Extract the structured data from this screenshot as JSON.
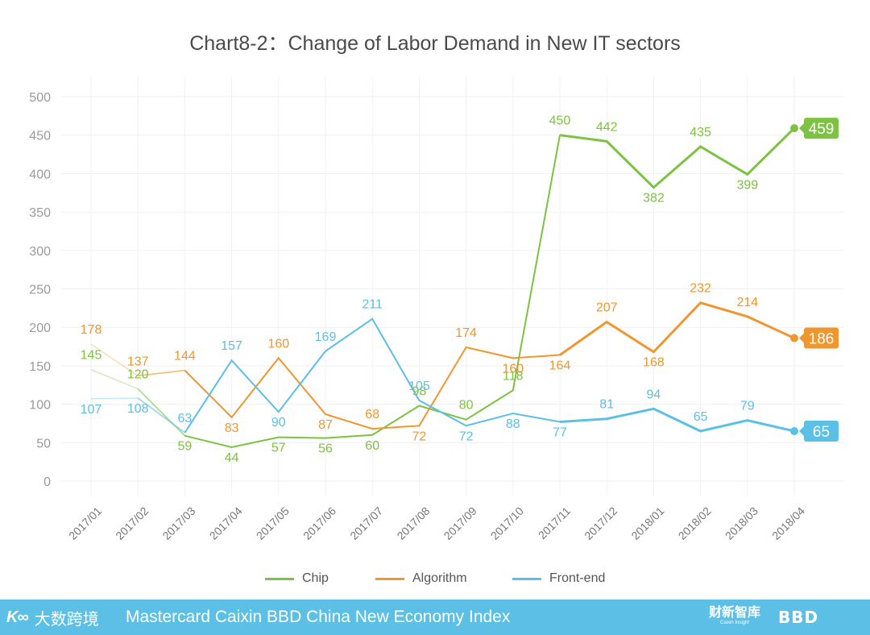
{
  "chart_data": {
    "type": "line",
    "title": "Chart8-2：Change of Labor Demand in New IT sectors",
    "categories": [
      "2017/01",
      "2017/02",
      "2017/03",
      "2017/04",
      "2017/05",
      "2017/06",
      "2017/07",
      "2017/08",
      "2017/09",
      "2017/10",
      "2017/11",
      "2017/12",
      "2018/01",
      "2018/02",
      "2018/03",
      "2018/04"
    ],
    "ylim": [
      0,
      500
    ],
    "yticks": [
      0,
      50,
      100,
      150,
      200,
      250,
      300,
      350,
      400,
      450,
      500
    ],
    "grid": true,
    "legend_position": "bottom",
    "series": [
      {
        "name": "Chip",
        "color": "#7dc242",
        "values": [
          145,
          120,
          59,
          44,
          57,
          56,
          60,
          98,
          80,
          118,
          450,
          442,
          382,
          435,
          399,
          459
        ]
      },
      {
        "name": "Algorithm",
        "color": "#f0962e",
        "values": [
          178,
          137,
          144,
          83,
          160,
          87,
          68,
          72,
          174,
          160,
          164,
          207,
          168,
          232,
          214,
          186
        ]
      },
      {
        "name": "Front-end",
        "color": "#5bbfe6",
        "values": [
          107,
          108,
          63,
          157,
          90,
          169,
          211,
          105,
          72,
          88,
          77,
          81,
          94,
          65,
          79,
          65
        ]
      }
    ]
  },
  "footer": {
    "logo_mark": "K∞",
    "logo_cn": "大数跨境",
    "title": "Mastercard Caixin BBD China New Economy Index",
    "brand1_main": "财新智库",
    "brand1_sub": "Caixin Insight",
    "brand2": "BBD"
  }
}
